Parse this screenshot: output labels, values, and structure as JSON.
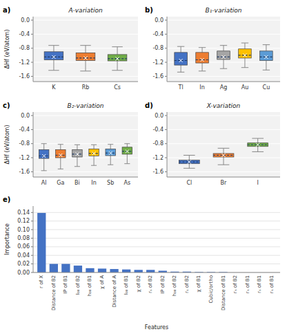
{
  "chart_data": [
    {
      "type": "box",
      "title": "A-variation",
      "annotations": [
        "a)"
      ],
      "ylabel": "ΔHf (eV/atom)",
      "categories": [
        "K",
        "Rb",
        "Cs"
      ],
      "colors": [
        "#4472C4",
        "#ED7D31",
        "#70AD47"
      ],
      "boxes": [
        {
          "med": -1.05,
          "q1": -1.13,
          "q3": -0.9,
          "whislo": -1.43,
          "whishi": -0.72,
          "mean": -1.05
        },
        {
          "med": -1.08,
          "q1": -1.15,
          "q3": -0.93,
          "whislo": -1.45,
          "whishi": -0.72,
          "mean": -1.08
        },
        {
          "med": -1.1,
          "q1": -1.16,
          "q3": -0.98,
          "whislo": -1.43,
          "whishi": -0.76,
          "mean": -1.1
        }
      ],
      "ylim": [
        -1.75,
        0.1
      ],
      "yticks": [
        {
          "value": 0.0,
          "label": "0.0"
        },
        -0.4,
        -0.8,
        -1.2,
        -1.6
      ],
      "grid": true
    },
    {
      "type": "box",
      "title": "B₁-variation",
      "annotations": [
        "b)"
      ],
      "categories": [
        "Tl",
        "In",
        "Ag",
        "Au",
        "Cu"
      ],
      "colors": [
        "#4472C4",
        "#ED7D31",
        "#A5A5A5",
        "#FFC000",
        "#5B9BD5"
      ],
      "boxes": [
        {
          "med": -1.15,
          "q1": -1.28,
          "q3": -0.92,
          "whislo": -1.48,
          "whishi": -0.75,
          "mean": -1.15
        },
        {
          "med": -1.13,
          "q1": -1.22,
          "q3": -0.92,
          "whislo": -1.45,
          "whishi": -0.78,
          "mean": -1.13
        },
        {
          "med": -1.05,
          "q1": -1.12,
          "q3": -0.88,
          "whislo": -1.38,
          "whishi": -0.72,
          "mean": -1.05
        },
        {
          "med": -1.0,
          "q1": -1.08,
          "q3": -0.82,
          "whislo": -1.35,
          "whishi": -0.65,
          "mean": -1.0
        },
        {
          "med": -1.05,
          "q1": -1.15,
          "q3": -0.88,
          "whislo": -1.42,
          "whishi": -0.7,
          "mean": -1.05
        }
      ],
      "ylim": [
        -1.75,
        0.1
      ],
      "yticks": [
        {
          "value": 0.0,
          "label": "0.0"
        },
        -0.4,
        -0.8,
        -1.2,
        -1.6
      ],
      "grid": true
    },
    {
      "type": "box",
      "title": "B₂-variation",
      "annotations": [
        "c)"
      ],
      "ylabel": "ΔHf (eV/atom)",
      "categories": [
        "Al",
        "Ga",
        "Bi",
        "In",
        "Sb",
        "As"
      ],
      "colors": [
        "#4472C4",
        "#ED7D31",
        "#A5A5A5",
        "#FFC000",
        "#5B9BD5",
        "#70AD47"
      ],
      "boxes": [
        {
          "med": -1.15,
          "q1": -1.22,
          "q3": -0.97,
          "whislo": -1.57,
          "whishi": -0.8,
          "mean": -1.15
        },
        {
          "med": -1.13,
          "q1": -1.2,
          "q3": -0.97,
          "whislo": -1.52,
          "whishi": -0.82,
          "mean": -1.13
        },
        {
          "med": -1.1,
          "q1": -1.18,
          "q3": -0.97,
          "whislo": -1.45,
          "whishi": -0.83,
          "mean": -1.1
        },
        {
          "med": -1.08,
          "q1": -1.15,
          "q3": -0.95,
          "whislo": -1.42,
          "whishi": -0.83,
          "mean": -1.08
        },
        {
          "med": -1.07,
          "q1": -1.14,
          "q3": -0.95,
          "whislo": -1.4,
          "whishi": -0.82,
          "mean": -1.07
        },
        {
          "med": -1.02,
          "q1": -1.1,
          "q3": -0.9,
          "whislo": -1.37,
          "whishi": -0.8,
          "mean": -1.02
        }
      ],
      "ylim": [
        -1.75,
        0.1
      ],
      "yticks": [
        {
          "value": 0.0,
          "label": "0.0"
        },
        -0.4,
        -0.8,
        -1.2,
        -1.6
      ],
      "grid": true
    },
    {
      "type": "box",
      "title": "X-variation",
      "annotations": [
        "d)"
      ],
      "categories": [
        "Cl",
        "Br",
        "I"
      ],
      "colors": [
        "#4472C4",
        "#ED7D31",
        "#70AD47"
      ],
      "boxes": [
        {
          "med": -1.32,
          "q1": -1.37,
          "q3": -1.27,
          "whislo": -1.5,
          "whishi": -1.13,
          "mean": -1.32
        },
        {
          "med": -1.13,
          "q1": -1.18,
          "q3": -1.08,
          "whislo": -1.4,
          "whishi": -0.93,
          "mean": -1.13
        },
        {
          "med": -0.83,
          "q1": -0.88,
          "q3": -0.78,
          "whislo": -1.03,
          "whishi": -0.65,
          "mean": -0.83
        }
      ],
      "ylim": [
        -1.75,
        0.1
      ],
      "yticks": [
        {
          "value": 0.0,
          "label": "0.0"
        },
        -0.4,
        -0.8,
        -1.2,
        -1.6
      ],
      "grid": true
    },
    {
      "type": "bar",
      "annotations": [
        "e)"
      ],
      "xlabel": "Features",
      "ylabel": "Importance",
      "categories": [
        "r of X",
        "Distance of B2",
        "IP of B1",
        "I₀₀ of B2",
        "h₀₀ of B1",
        "χ of A",
        "Distance of A",
        "I₀₀ of B1",
        "χ of B2",
        "rₛ of B2",
        "IP of B2",
        "h₀₀ of B2",
        "rₛ of B2",
        "χ of B1",
        "Cubic/ortho",
        "Distance of B1",
        "rₙ of B2",
        "rₙ of B1",
        "rₛ of B1",
        "rₙ of B1"
      ],
      "values": [
        0.139,
        0.02,
        0.02,
        0.016,
        0.01,
        0.009,
        0.008,
        0.007,
        0.006,
        0.006,
        0.004,
        0.002,
        0.002,
        0.001,
        0.001,
        0.001,
        0.0,
        0.0,
        0.0,
        0.0
      ],
      "color": "#4472C4",
      "ylim": [
        0,
        0.155
      ],
      "yticks": [
        {
          "value": 0,
          "label": "0.00"
        },
        0.02,
        0.04,
        0.06,
        0.08,
        {
          "value": 0.1,
          "label": "0.10"
        },
        0.12,
        0.14
      ],
      "grid": true
    }
  ]
}
